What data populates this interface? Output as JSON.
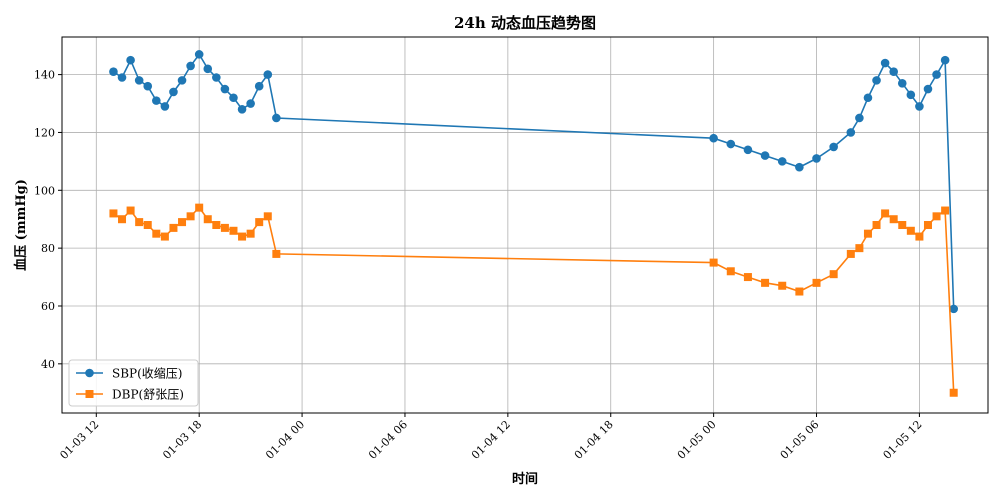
{
  "chart_data": {
    "type": "line",
    "title": "24h 动态血压趋势图",
    "xlabel": "时间",
    "ylabel": "血压 (mmHg)",
    "ylim": [
      23,
      153
    ],
    "xlim": [
      "2024-01-03 10:00",
      "2024-01-05 16:00"
    ],
    "yticks": [
      40,
      60,
      80,
      100,
      120,
      140
    ],
    "xticks": [
      {
        "value": "2024-01-03 12:00",
        "label": "01-03 12"
      },
      {
        "value": "2024-01-03 18:00",
        "label": "01-03 18"
      },
      {
        "value": "2024-01-04 00:00",
        "label": "01-04 00"
      },
      {
        "value": "2024-01-04 06:00",
        "label": "01-04 06"
      },
      {
        "value": "2024-01-04 12:00",
        "label": "01-04 12"
      },
      {
        "value": "2024-01-04 18:00",
        "label": "01-04 18"
      },
      {
        "value": "2024-01-05 00:00",
        "label": "01-05 00"
      },
      {
        "value": "2024-01-05 06:00",
        "label": "01-05 06"
      },
      {
        "value": "2024-01-05 12:00",
        "label": "01-05 12"
      }
    ],
    "grid": true,
    "legend_position": "bottom-left",
    "x": [
      "2024-01-03 13:00",
      "2024-01-03 13:30",
      "2024-01-03 14:00",
      "2024-01-03 14:30",
      "2024-01-03 15:00",
      "2024-01-03 15:30",
      "2024-01-03 16:00",
      "2024-01-03 16:30",
      "2024-01-03 17:00",
      "2024-01-03 17:30",
      "2024-01-03 18:00",
      "2024-01-03 18:30",
      "2024-01-03 19:00",
      "2024-01-03 19:30",
      "2024-01-03 20:00",
      "2024-01-03 20:30",
      "2024-01-03 21:00",
      "2024-01-03 21:30",
      "2024-01-03 22:00",
      "2024-01-03 22:30",
      "2024-01-05 00:00",
      "2024-01-05 01:00",
      "2024-01-05 02:00",
      "2024-01-05 03:00",
      "2024-01-05 04:00",
      "2024-01-05 05:00",
      "2024-01-05 06:00",
      "2024-01-05 07:00",
      "2024-01-05 08:00",
      "2024-01-05 08:30",
      "2024-01-05 09:00",
      "2024-01-05 09:30",
      "2024-01-05 10:00",
      "2024-01-05 10:30",
      "2024-01-05 11:00",
      "2024-01-05 11:30",
      "2024-01-05 12:00",
      "2024-01-05 12:30",
      "2024-01-05 13:00",
      "2024-01-05 13:30",
      "2024-01-05 14:00"
    ],
    "series": [
      {
        "name": "SBP(收缩压)",
        "color": "#1f77b4",
        "marker": "circle",
        "values": [
          141,
          139,
          145,
          138,
          136,
          131,
          129,
          134,
          138,
          143,
          147,
          142,
          139,
          135,
          132,
          128,
          130,
          136,
          140,
          125,
          118,
          116,
          114,
          112,
          110,
          108,
          111,
          115,
          120,
          125,
          132,
          138,
          144,
          141,
          137,
          133,
          129,
          135,
          140,
          145,
          59
        ]
      },
      {
        "name": "DBP(舒张压)",
        "color": "#ff7f0e",
        "marker": "square",
        "values": [
          92,
          90,
          93,
          89,
          88,
          85,
          84,
          87,
          89,
          91,
          94,
          90,
          88,
          87,
          86,
          84,
          85,
          89,
          91,
          78,
          75,
          72,
          70,
          68,
          67,
          65,
          68,
          71,
          78,
          80,
          85,
          88,
          92,
          90,
          88,
          86,
          84,
          88,
          91,
          93,
          30
        ]
      }
    ]
  }
}
